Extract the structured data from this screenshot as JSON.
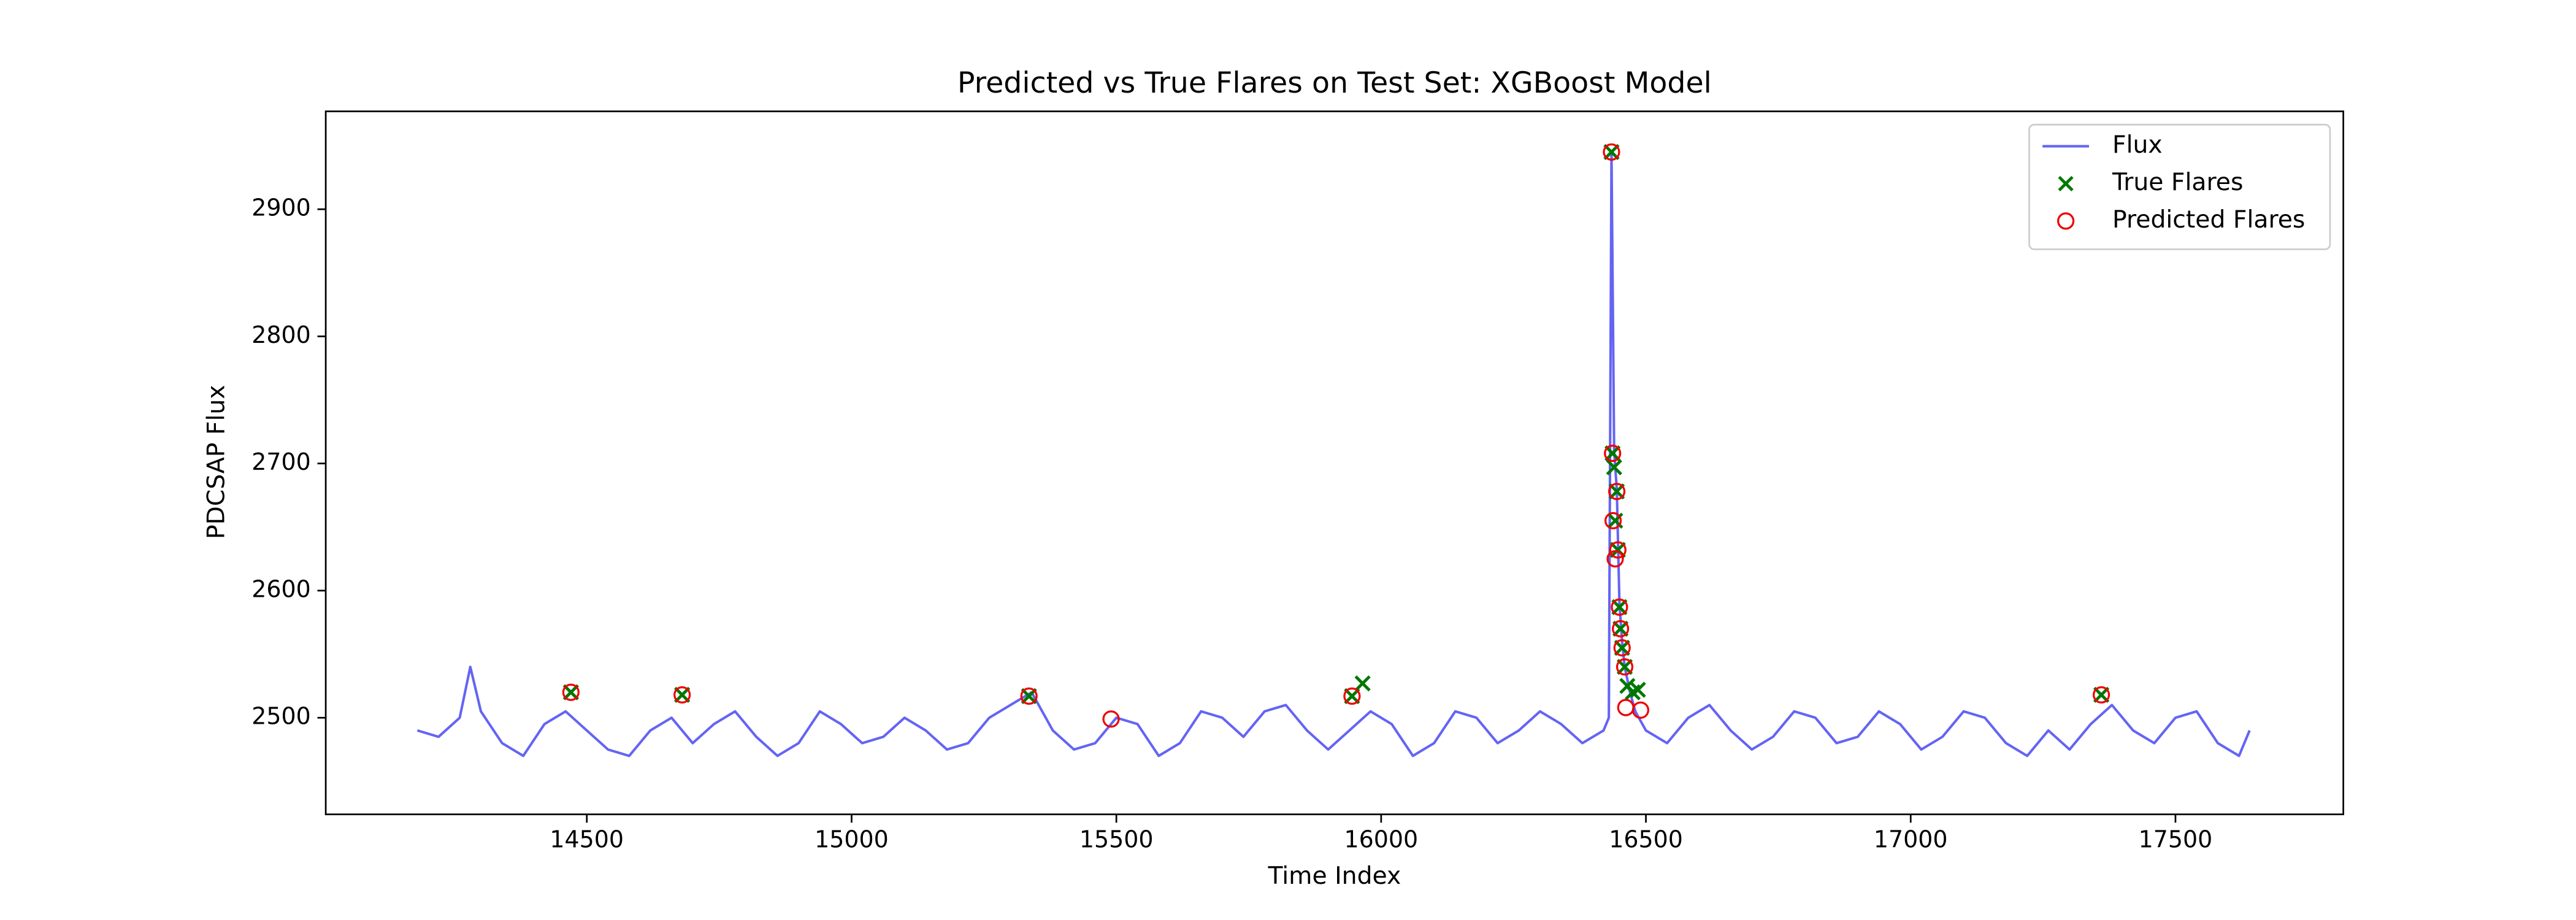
{
  "chart_data": {
    "type": "line",
    "title": "Predicted vs True Flares on Test Set: XGBoost Model",
    "x_label": "Time Index",
    "y_label": "PDCSAP Flux",
    "xlim": [
      14007,
      17817
    ],
    "ylim": [
      2424,
      2977
    ],
    "xticks": [
      14500,
      15000,
      15500,
      16000,
      16500,
      17000,
      17500
    ],
    "yticks": [
      2500,
      2600,
      2700,
      2800,
      2900
    ],
    "legend": "upper right",
    "series": [
      {
        "name": "Flux",
        "type": "line",
        "color": "#6464f4",
        "x": [
          14180,
          14220,
          14260,
          14280,
          14300,
          14340,
          14380,
          14420,
          14460,
          14500,
          14540,
          14580,
          14620,
          14660,
          14700,
          14740,
          14780,
          14820,
          14860,
          14900,
          14940,
          14980,
          15020,
          15060,
          15100,
          15140,
          15180,
          15220,
          15260,
          15300,
          15340,
          15380,
          15420,
          15460,
          15500,
          15540,
          15580,
          15620,
          15660,
          15700,
          15740,
          15780,
          15820,
          15860,
          15900,
          15940,
          15980,
          16020,
          16060,
          16100,
          16140,
          16180,
          16220,
          16260,
          16300,
          16340,
          16380,
          16420,
          16430,
          16435,
          16440,
          16445,
          16450,
          16455,
          16460,
          16470,
          16480,
          16500,
          16540,
          16580,
          16620,
          16660,
          16700,
          16740,
          16780,
          16820,
          16860,
          16900,
          16940,
          16980,
          17020,
          17060,
          17100,
          17140,
          17180,
          17220,
          17260,
          17300,
          17340,
          17380,
          17420,
          17460,
          17500,
          17540,
          17580,
          17620,
          17640
        ],
        "values": [
          2490,
          2485,
          2500,
          2540,
          2505,
          2480,
          2470,
          2495,
          2505,
          2490,
          2475,
          2470,
          2490,
          2500,
          2480,
          2495,
          2505,
          2485,
          2470,
          2480,
          2505,
          2495,
          2480,
          2485,
          2500,
          2490,
          2475,
          2480,
          2500,
          2510,
          2520,
          2490,
          2475,
          2480,
          2500,
          2495,
          2470,
          2480,
          2505,
          2500,
          2485,
          2505,
          2510,
          2490,
          2475,
          2490,
          2505,
          2495,
          2470,
          2480,
          2505,
          2500,
          2480,
          2490,
          2505,
          2495,
          2480,
          2490,
          2500,
          2945,
          2710,
          2680,
          2590,
          2560,
          2540,
          2520,
          2505,
          2490,
          2480,
          2500,
          2510,
          2490,
          2475,
          2485,
          2505,
          2500,
          2480,
          2485,
          2505,
          2495,
          2475,
          2485,
          2505,
          2500,
          2480,
          2470,
          2490,
          2475,
          2495,
          2510,
          2490,
          2480,
          2500,
          2505,
          2480,
          2470,
          2490
        ]
      },
      {
        "name": "True Flares",
        "type": "scatter",
        "marker": "x",
        "color": "#007700",
        "x": [
          14470,
          14680,
          15335,
          15945,
          15965,
          16435,
          16437,
          16440,
          16442,
          16445,
          16447,
          16450,
          16452,
          16455,
          16460,
          16465,
          16475,
          16485,
          17360
        ],
        "values": [
          2520,
          2518,
          2517,
          2517,
          2527,
          2945,
          2708,
          2697,
          2655,
          2678,
          2632,
          2587,
          2570,
          2555,
          2540,
          2525,
          2520,
          2522,
          2518
        ]
      },
      {
        "name": "Predicted Flares",
        "type": "scatter",
        "marker": "o",
        "color": "#ee0000",
        "x": [
          14470,
          14680,
          15335,
          15490,
          15945,
          16435,
          16437,
          16438,
          16442,
          16445,
          16447,
          16450,
          16452,
          16455,
          16460,
          16462,
          16490,
          17360
        ],
        "values": [
          2520,
          2518,
          2517,
          2499,
          2517,
          2945,
          2708,
          2655,
          2625,
          2678,
          2632,
          2587,
          2570,
          2555,
          2540,
          2508,
          2506,
          2518
        ]
      }
    ]
  }
}
